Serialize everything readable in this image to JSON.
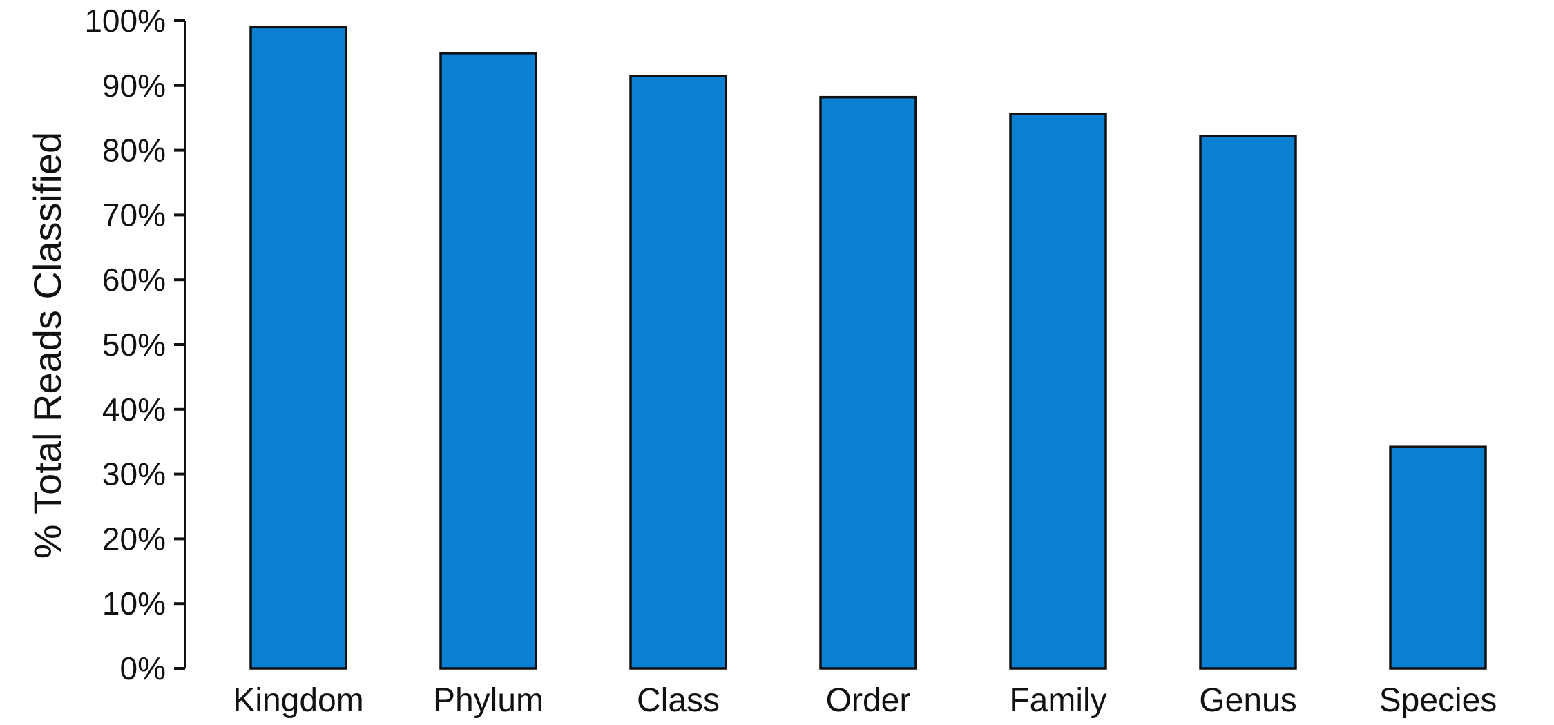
{
  "chart_data": {
    "type": "bar",
    "title": "",
    "xlabel": "",
    "ylabel": "% Total Reads Classified",
    "categories": [
      "Kingdom",
      "Phylum",
      "Class",
      "Order",
      "Family",
      "Genus",
      "Species"
    ],
    "values": [
      99,
      95,
      91.5,
      88.2,
      85.6,
      82.2,
      34.2
    ],
    "ylim": [
      0,
      100
    ],
    "yticks": [
      0,
      10,
      20,
      30,
      40,
      50,
      60,
      70,
      80,
      90,
      100
    ],
    "ytick_labels": [
      "0%",
      "10%",
      "20%",
      "30%",
      "40%",
      "50%",
      "60%",
      "70%",
      "80%",
      "90%",
      "100%"
    ],
    "grid": false,
    "legend": "none",
    "bar_color": "#0A80D2",
    "edge_color": "#111111"
  }
}
